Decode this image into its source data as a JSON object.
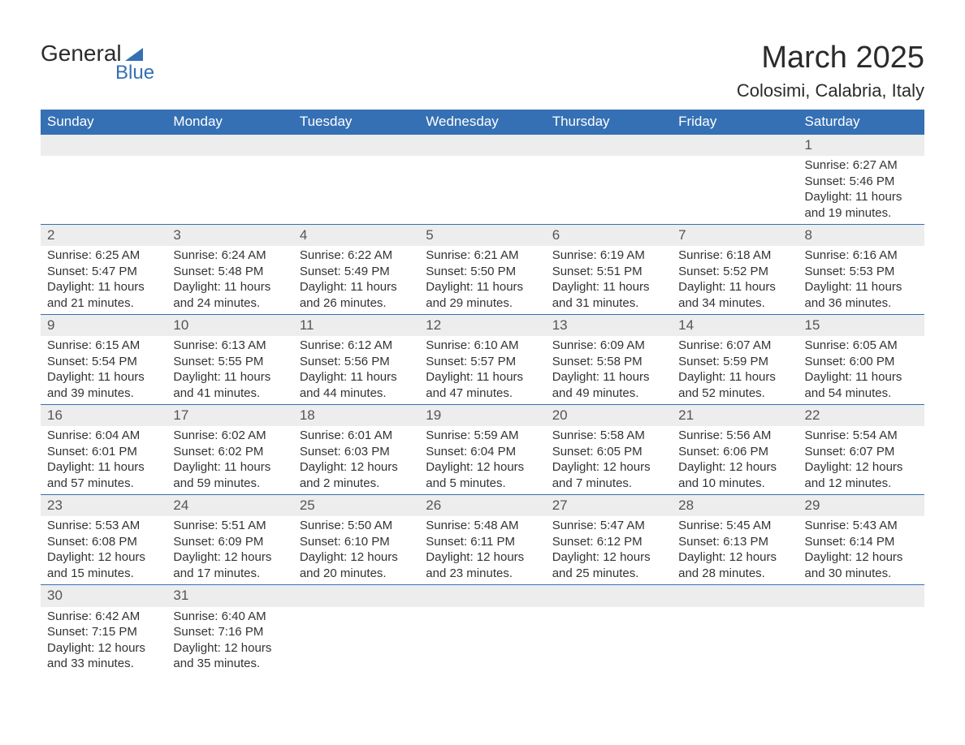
{
  "logo": {
    "text1": "General",
    "text2": "Blue"
  },
  "title": "March 2025",
  "location": "Colosimi, Calabria, Italy",
  "weekdays": [
    "Sunday",
    "Monday",
    "Tuesday",
    "Wednesday",
    "Thursday",
    "Friday",
    "Saturday"
  ],
  "colors": {
    "header_bg": "#3570b4",
    "header_text": "#ffffff",
    "daynum_bg": "#ededed",
    "daynum_text": "#555555",
    "body_text": "#333333",
    "border": "#3570b4",
    "page_bg": "#ffffff",
    "logo_dark": "#2b2b2b",
    "logo_blue": "#3570b4"
  },
  "weeks": [
    [
      null,
      null,
      null,
      null,
      null,
      null,
      {
        "n": "1",
        "sr": "Sunrise: 6:27 AM",
        "ss": "Sunset: 5:46 PM",
        "d1": "Daylight: 11 hours",
        "d2": "and 19 minutes."
      }
    ],
    [
      {
        "n": "2",
        "sr": "Sunrise: 6:25 AM",
        "ss": "Sunset: 5:47 PM",
        "d1": "Daylight: 11 hours",
        "d2": "and 21 minutes."
      },
      {
        "n": "3",
        "sr": "Sunrise: 6:24 AM",
        "ss": "Sunset: 5:48 PM",
        "d1": "Daylight: 11 hours",
        "d2": "and 24 minutes."
      },
      {
        "n": "4",
        "sr": "Sunrise: 6:22 AM",
        "ss": "Sunset: 5:49 PM",
        "d1": "Daylight: 11 hours",
        "d2": "and 26 minutes."
      },
      {
        "n": "5",
        "sr": "Sunrise: 6:21 AM",
        "ss": "Sunset: 5:50 PM",
        "d1": "Daylight: 11 hours",
        "d2": "and 29 minutes."
      },
      {
        "n": "6",
        "sr": "Sunrise: 6:19 AM",
        "ss": "Sunset: 5:51 PM",
        "d1": "Daylight: 11 hours",
        "d2": "and 31 minutes."
      },
      {
        "n": "7",
        "sr": "Sunrise: 6:18 AM",
        "ss": "Sunset: 5:52 PM",
        "d1": "Daylight: 11 hours",
        "d2": "and 34 minutes."
      },
      {
        "n": "8",
        "sr": "Sunrise: 6:16 AM",
        "ss": "Sunset: 5:53 PM",
        "d1": "Daylight: 11 hours",
        "d2": "and 36 minutes."
      }
    ],
    [
      {
        "n": "9",
        "sr": "Sunrise: 6:15 AM",
        "ss": "Sunset: 5:54 PM",
        "d1": "Daylight: 11 hours",
        "d2": "and 39 minutes."
      },
      {
        "n": "10",
        "sr": "Sunrise: 6:13 AM",
        "ss": "Sunset: 5:55 PM",
        "d1": "Daylight: 11 hours",
        "d2": "and 41 minutes."
      },
      {
        "n": "11",
        "sr": "Sunrise: 6:12 AM",
        "ss": "Sunset: 5:56 PM",
        "d1": "Daylight: 11 hours",
        "d2": "and 44 minutes."
      },
      {
        "n": "12",
        "sr": "Sunrise: 6:10 AM",
        "ss": "Sunset: 5:57 PM",
        "d1": "Daylight: 11 hours",
        "d2": "and 47 minutes."
      },
      {
        "n": "13",
        "sr": "Sunrise: 6:09 AM",
        "ss": "Sunset: 5:58 PM",
        "d1": "Daylight: 11 hours",
        "d2": "and 49 minutes."
      },
      {
        "n": "14",
        "sr": "Sunrise: 6:07 AM",
        "ss": "Sunset: 5:59 PM",
        "d1": "Daylight: 11 hours",
        "d2": "and 52 minutes."
      },
      {
        "n": "15",
        "sr": "Sunrise: 6:05 AM",
        "ss": "Sunset: 6:00 PM",
        "d1": "Daylight: 11 hours",
        "d2": "and 54 minutes."
      }
    ],
    [
      {
        "n": "16",
        "sr": "Sunrise: 6:04 AM",
        "ss": "Sunset: 6:01 PM",
        "d1": "Daylight: 11 hours",
        "d2": "and 57 minutes."
      },
      {
        "n": "17",
        "sr": "Sunrise: 6:02 AM",
        "ss": "Sunset: 6:02 PM",
        "d1": "Daylight: 11 hours",
        "d2": "and 59 minutes."
      },
      {
        "n": "18",
        "sr": "Sunrise: 6:01 AM",
        "ss": "Sunset: 6:03 PM",
        "d1": "Daylight: 12 hours",
        "d2": "and 2 minutes."
      },
      {
        "n": "19",
        "sr": "Sunrise: 5:59 AM",
        "ss": "Sunset: 6:04 PM",
        "d1": "Daylight: 12 hours",
        "d2": "and 5 minutes."
      },
      {
        "n": "20",
        "sr": "Sunrise: 5:58 AM",
        "ss": "Sunset: 6:05 PM",
        "d1": "Daylight: 12 hours",
        "d2": "and 7 minutes."
      },
      {
        "n": "21",
        "sr": "Sunrise: 5:56 AM",
        "ss": "Sunset: 6:06 PM",
        "d1": "Daylight: 12 hours",
        "d2": "and 10 minutes."
      },
      {
        "n": "22",
        "sr": "Sunrise: 5:54 AM",
        "ss": "Sunset: 6:07 PM",
        "d1": "Daylight: 12 hours",
        "d2": "and 12 minutes."
      }
    ],
    [
      {
        "n": "23",
        "sr": "Sunrise: 5:53 AM",
        "ss": "Sunset: 6:08 PM",
        "d1": "Daylight: 12 hours",
        "d2": "and 15 minutes."
      },
      {
        "n": "24",
        "sr": "Sunrise: 5:51 AM",
        "ss": "Sunset: 6:09 PM",
        "d1": "Daylight: 12 hours",
        "d2": "and 17 minutes."
      },
      {
        "n": "25",
        "sr": "Sunrise: 5:50 AM",
        "ss": "Sunset: 6:10 PM",
        "d1": "Daylight: 12 hours",
        "d2": "and 20 minutes."
      },
      {
        "n": "26",
        "sr": "Sunrise: 5:48 AM",
        "ss": "Sunset: 6:11 PM",
        "d1": "Daylight: 12 hours",
        "d2": "and 23 minutes."
      },
      {
        "n": "27",
        "sr": "Sunrise: 5:47 AM",
        "ss": "Sunset: 6:12 PM",
        "d1": "Daylight: 12 hours",
        "d2": "and 25 minutes."
      },
      {
        "n": "28",
        "sr": "Sunrise: 5:45 AM",
        "ss": "Sunset: 6:13 PM",
        "d1": "Daylight: 12 hours",
        "d2": "and 28 minutes."
      },
      {
        "n": "29",
        "sr": "Sunrise: 5:43 AM",
        "ss": "Sunset: 6:14 PM",
        "d1": "Daylight: 12 hours",
        "d2": "and 30 minutes."
      }
    ],
    [
      {
        "n": "30",
        "sr": "Sunrise: 6:42 AM",
        "ss": "Sunset: 7:15 PM",
        "d1": "Daylight: 12 hours",
        "d2": "and 33 minutes."
      },
      {
        "n": "31",
        "sr": "Sunrise: 6:40 AM",
        "ss": "Sunset: 7:16 PM",
        "d1": "Daylight: 12 hours",
        "d2": "and 35 minutes."
      },
      null,
      null,
      null,
      null,
      null
    ]
  ]
}
